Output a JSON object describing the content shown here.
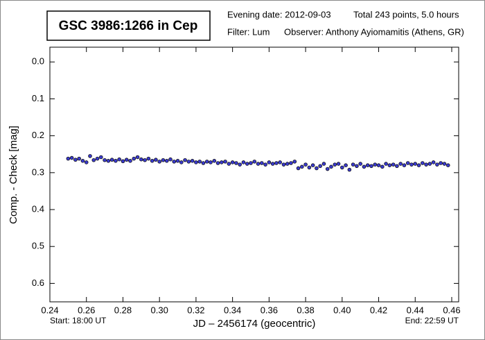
{
  "chart_data": {
    "type": "scatter",
    "title": "GSC 3986:1266 in Cep",
    "evening_date": "Evening date: 2012-09-03",
    "total": "Total 243 points, 5.0 hours",
    "filter": "Filter: Lum",
    "observer": "Observer: Anthony Ayiomamitis (Athens, GR)",
    "x_label": "JD – 2456174  (geocentric)",
    "y_label": "Comp. - Check [mag]",
    "start": "Start: 18:00 UT",
    "end": "End: 22:59 UT",
    "color": "#3a3ad0",
    "y_inverted": true,
    "xlim": [
      0.24,
      0.4638
    ],
    "ylim": [
      -0.04,
      0.65
    ],
    "xticks": [
      0.24,
      0.26,
      0.28,
      {
        "value": 0.3,
        "label": "0.30"
      },
      0.32,
      0.34,
      0.36,
      0.38,
      {
        "value": 0.4,
        "label": "0.40"
      },
      0.42,
      0.44,
      0.46
    ],
    "yticks": [
      {
        "value": 0,
        "label": "0.0"
      },
      0.1,
      0.2,
      0.3,
      0.4,
      0.5,
      0.6
    ],
    "x": [
      0.25,
      0.252,
      0.254,
      0.256,
      0.258,
      0.26,
      0.262,
      0.264,
      0.266,
      0.268,
      0.27,
      0.272,
      0.274,
      0.276,
      0.278,
      0.28,
      0.282,
      0.284,
      0.286,
      0.288,
      0.29,
      0.292,
      0.294,
      0.296,
      0.298,
      0.3,
      0.302,
      0.304,
      0.306,
      0.308,
      0.31,
      0.312,
      0.314,
      0.316,
      0.318,
      0.32,
      0.322,
      0.324,
      0.326,
      0.328,
      0.33,
      0.332,
      0.334,
      0.336,
      0.338,
      0.34,
      0.342,
      0.344,
      0.346,
      0.348,
      0.35,
      0.352,
      0.354,
      0.356,
      0.358,
      0.36,
      0.362,
      0.364,
      0.366,
      0.368,
      0.37,
      0.372,
      0.374,
      0.376,
      0.378,
      0.38,
      0.382,
      0.384,
      0.386,
      0.388,
      0.39,
      0.392,
      0.394,
      0.396,
      0.398,
      0.4,
      0.402,
      0.404,
      0.406,
      0.408,
      0.41,
      0.412,
      0.414,
      0.416,
      0.418,
      0.42,
      0.422,
      0.424,
      0.426,
      0.428,
      0.43,
      0.432,
      0.434,
      0.436,
      0.438,
      0.44,
      0.442,
      0.444,
      0.446,
      0.448,
      0.45,
      0.452,
      0.454,
      0.456,
      0.458
    ],
    "values": [
      0.262,
      0.26,
      0.265,
      0.262,
      0.268,
      0.272,
      0.255,
      0.266,
      0.262,
      0.258,
      0.266,
      0.268,
      0.265,
      0.268,
      0.264,
      0.269,
      0.265,
      0.268,
      0.262,
      0.258,
      0.264,
      0.266,
      0.262,
      0.268,
      0.265,
      0.27,
      0.266,
      0.268,
      0.264,
      0.27,
      0.268,
      0.272,
      0.266,
      0.27,
      0.268,
      0.272,
      0.27,
      0.274,
      0.27,
      0.272,
      0.268,
      0.274,
      0.272,
      0.27,
      0.276,
      0.272,
      0.274,
      0.278,
      0.272,
      0.276,
      0.274,
      0.27,
      0.276,
      0.274,
      0.278,
      0.272,
      0.276,
      0.274,
      0.272,
      0.278,
      0.276,
      0.274,
      0.27,
      0.288,
      0.284,
      0.278,
      0.286,
      0.28,
      0.288,
      0.282,
      0.276,
      0.29,
      0.284,
      0.278,
      0.276,
      0.286,
      0.28,
      0.292,
      0.278,
      0.282,
      0.276,
      0.284,
      0.28,
      0.282,
      0.278,
      0.28,
      0.284,
      0.276,
      0.28,
      0.278,
      0.282,
      0.276,
      0.28,
      0.274,
      0.278,
      0.276,
      0.28,
      0.274,
      0.278,
      0.276,
      0.272,
      0.278,
      0.274,
      0.276,
      0.28
    ]
  }
}
